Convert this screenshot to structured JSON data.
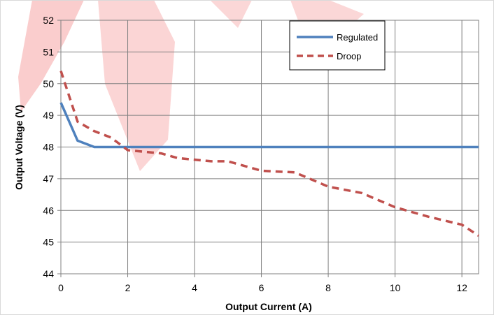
{
  "chart_data": {
    "type": "line",
    "title": "",
    "xlabel": "Output Current (A)",
    "ylabel": "Output Voltage (V)",
    "xlim": [
      0,
      12.5
    ],
    "ylim": [
      44,
      52
    ],
    "x_ticks": [
      "0",
      "2",
      "4",
      "6",
      "8",
      "10",
      "12"
    ],
    "y_ticks": [
      "44",
      "45",
      "46",
      "47",
      "48",
      "49",
      "50",
      "51",
      "52"
    ],
    "grid": true,
    "legend_position": "top-right",
    "series": [
      {
        "name": "Regulated",
        "color": "#4F81BD",
        "style": "solid",
        "x": [
          0,
          0.5,
          1,
          2,
          4,
          6,
          8,
          10,
          12,
          12.5
        ],
        "y": [
          49.4,
          48.2,
          48.0,
          48.0,
          48.0,
          48.0,
          48.0,
          48.0,
          48.0,
          48.0
        ]
      },
      {
        "name": "Droop",
        "color": "#C0504D",
        "style": "dashed",
        "x": [
          0,
          0.5,
          1,
          1.5,
          2,
          3,
          3.5,
          4,
          4.5,
          5,
          6,
          7,
          8,
          9,
          10,
          11,
          12,
          12.5
        ],
        "y": [
          50.4,
          48.8,
          48.5,
          48.3,
          47.9,
          47.8,
          47.65,
          47.6,
          47.55,
          47.55,
          47.25,
          47.2,
          46.75,
          46.55,
          46.1,
          45.8,
          45.55,
          45.2
        ]
      }
    ]
  }
}
